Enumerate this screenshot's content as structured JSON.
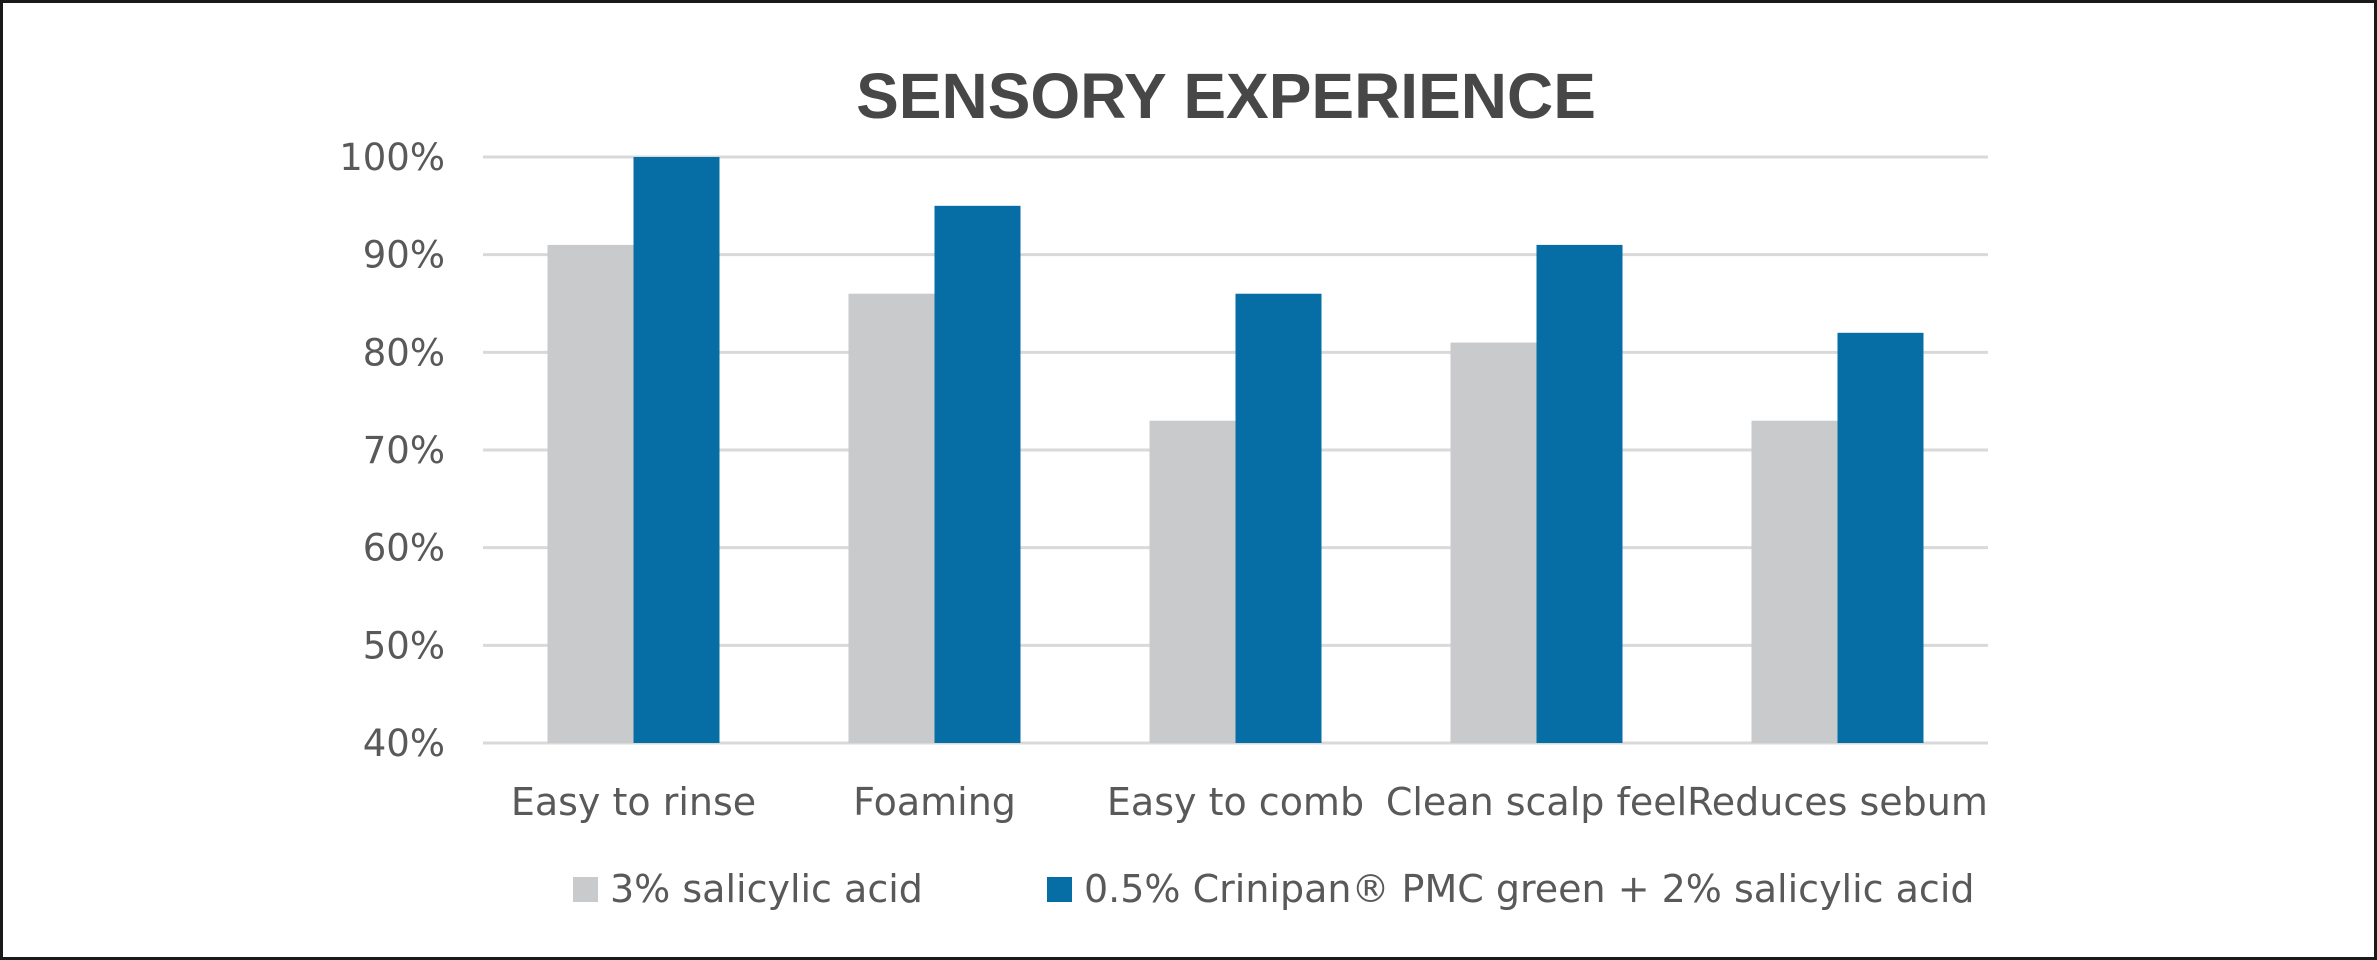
{
  "chart_data": {
    "type": "bar",
    "title": "SENSORY EXPERIENCE",
    "xlabel": "",
    "ylabel": "",
    "categories": [
      "Easy to rinse",
      "Foaming",
      "Easy to comb",
      "Clean scalp feel",
      "Reduces sebum"
    ],
    "series": [
      {
        "name": "3% salicylic acid",
        "color": "#c9cacc",
        "values": [
          91,
          86,
          73,
          81,
          73
        ]
      },
      {
        "name": "0.5% Crinipan® PMC green + 2% salicylic acid",
        "color": "#066ea5",
        "values": [
          100,
          95,
          86,
          91,
          82
        ]
      }
    ],
    "ylim": [
      40,
      100
    ],
    "yticks": [
      40,
      50,
      60,
      70,
      80,
      90,
      100
    ],
    "ytick_labels": [
      "40%",
      "50%",
      "60%",
      "70%",
      "80%",
      "90%",
      "100%"
    ],
    "grid": true,
    "legend_position": "bottom"
  }
}
